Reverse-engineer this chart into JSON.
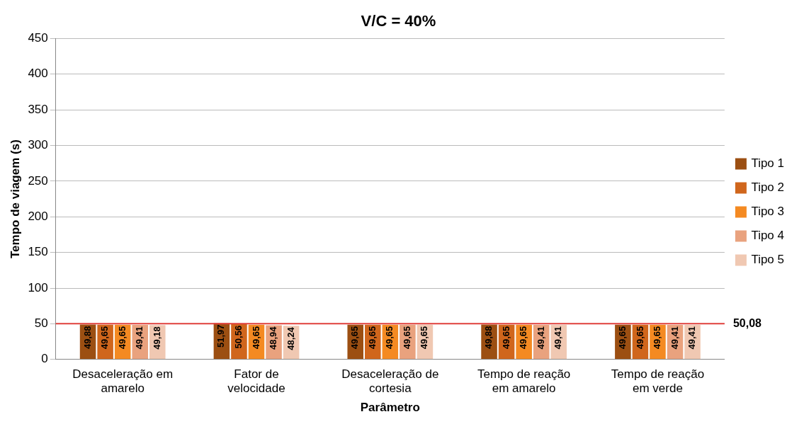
{
  "chart_data": {
    "type": "bar",
    "title": "V/C = 40%",
    "xlabel": "Parâmetro",
    "ylabel": "Tempo de viagem (s)",
    "categories": [
      "Desaceleração em amarelo",
      "Fator de velocidade",
      "Desaceleração de cortesia",
      "Tempo de reação em amarelo",
      "Tempo de reação em verde"
    ],
    "series": [
      {
        "name": "Tipo 1",
        "color": "#9c4f12",
        "values": [
          49.88,
          51.97,
          49.65,
          49.88,
          49.65
        ],
        "value_labels": [
          "49,88",
          "51,97",
          "49,65",
          "49,88",
          "49,65"
        ]
      },
      {
        "name": "Tipo 2",
        "color": "#d0661c",
        "values": [
          49.65,
          50.56,
          49.65,
          49.65,
          49.65
        ],
        "value_labels": [
          "49,65",
          "50,56",
          "49,65",
          "49,65",
          "49,65"
        ]
      },
      {
        "name": "Tipo 3",
        "color": "#f48a22",
        "values": [
          49.65,
          49.65,
          49.65,
          49.65,
          49.65
        ],
        "value_labels": [
          "49,65",
          "49,65",
          "49,65",
          "49,65",
          "49,65"
        ]
      },
      {
        "name": "Tipo 4",
        "color": "#e9a27e",
        "values": [
          49.41,
          48.94,
          49.65,
          49.41,
          49.41
        ],
        "value_labels": [
          "49,41",
          "48,94",
          "49,65",
          "49,41",
          "49,41"
        ]
      },
      {
        "name": "Tipo 5",
        "color": "#f0c8b2",
        "values": [
          49.18,
          48.24,
          49.65,
          49.41,
          49.41
        ],
        "value_labels": [
          "49,18",
          "48,24",
          "49,65",
          "49,41",
          "49,41"
        ]
      }
    ],
    "ylim": [
      0,
      450
    ],
    "yticks": [
      0,
      50,
      100,
      150,
      200,
      250,
      300,
      350,
      400,
      450
    ],
    "grid": "y",
    "legend": "right",
    "ref_lines": [
      {
        "axis": "y",
        "value": 50.08,
        "label": "50,08",
        "color": "#e0403c"
      }
    ]
  }
}
